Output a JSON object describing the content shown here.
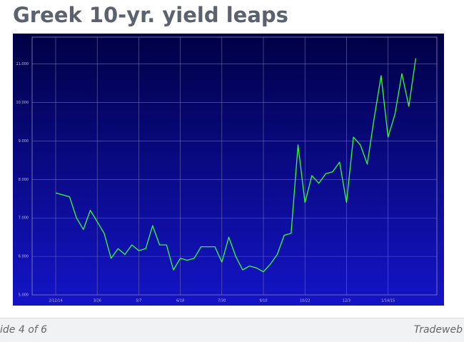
{
  "chart_data": {
    "type": "line",
    "title": "Greek 10-yr. yield leaps",
    "categories": [
      "2/12/14",
      null,
      null,
      null,
      null,
      null,
      "3/26",
      null,
      null,
      null,
      null,
      null,
      "5/7",
      null,
      null,
      null,
      null,
      null,
      "6/18",
      null,
      null,
      null,
      null,
      null,
      "7/30",
      null,
      null,
      null,
      null,
      null,
      "9/10",
      null,
      null,
      null,
      null,
      null,
      "10/22",
      null,
      null,
      null,
      null,
      null,
      "12/3",
      null,
      null,
      null,
      null,
      null,
      "1/14/15",
      null,
      null,
      null,
      null
    ],
    "series": [
      {
        "name": "Greek 10-yr. yield",
        "color": "#33ff33",
        "values": [
          7.65,
          7.6,
          7.55,
          7.0,
          6.7,
          7.2,
          6.9,
          6.6,
          5.95,
          6.2,
          6.05,
          6.3,
          6.15,
          6.2,
          6.8,
          6.3,
          6.3,
          5.65,
          5.95,
          5.9,
          5.95,
          6.25,
          6.25,
          6.25,
          5.85,
          6.5,
          6.0,
          5.65,
          5.75,
          5.7,
          5.6,
          5.8,
          6.05,
          6.55,
          6.6,
          8.9,
          7.4,
          8.1,
          7.9,
          8.15,
          8.2,
          8.45,
          7.4,
          9.1,
          8.9,
          8.4,
          9.6,
          10.7,
          9.1,
          9.7,
          10.75,
          9.9,
          11.15
        ]
      }
    ],
    "ylim": [
      5,
      11.7
    ],
    "yticks": [
      {
        "value": 5,
        "label": "5.000"
      },
      {
        "value": 6,
        "label": "6.000"
      },
      {
        "value": 7,
        "label": "7.000"
      },
      {
        "value": 8,
        "label": "8.000"
      },
      {
        "value": 9,
        "label": "9.000"
      },
      {
        "value": 10,
        "label": "10.000"
      },
      {
        "value": 11,
        "label": "11.000"
      }
    ],
    "grid": true
  },
  "footer": {
    "slide": "ide 4 of 6",
    "source": "Tradeweb"
  }
}
